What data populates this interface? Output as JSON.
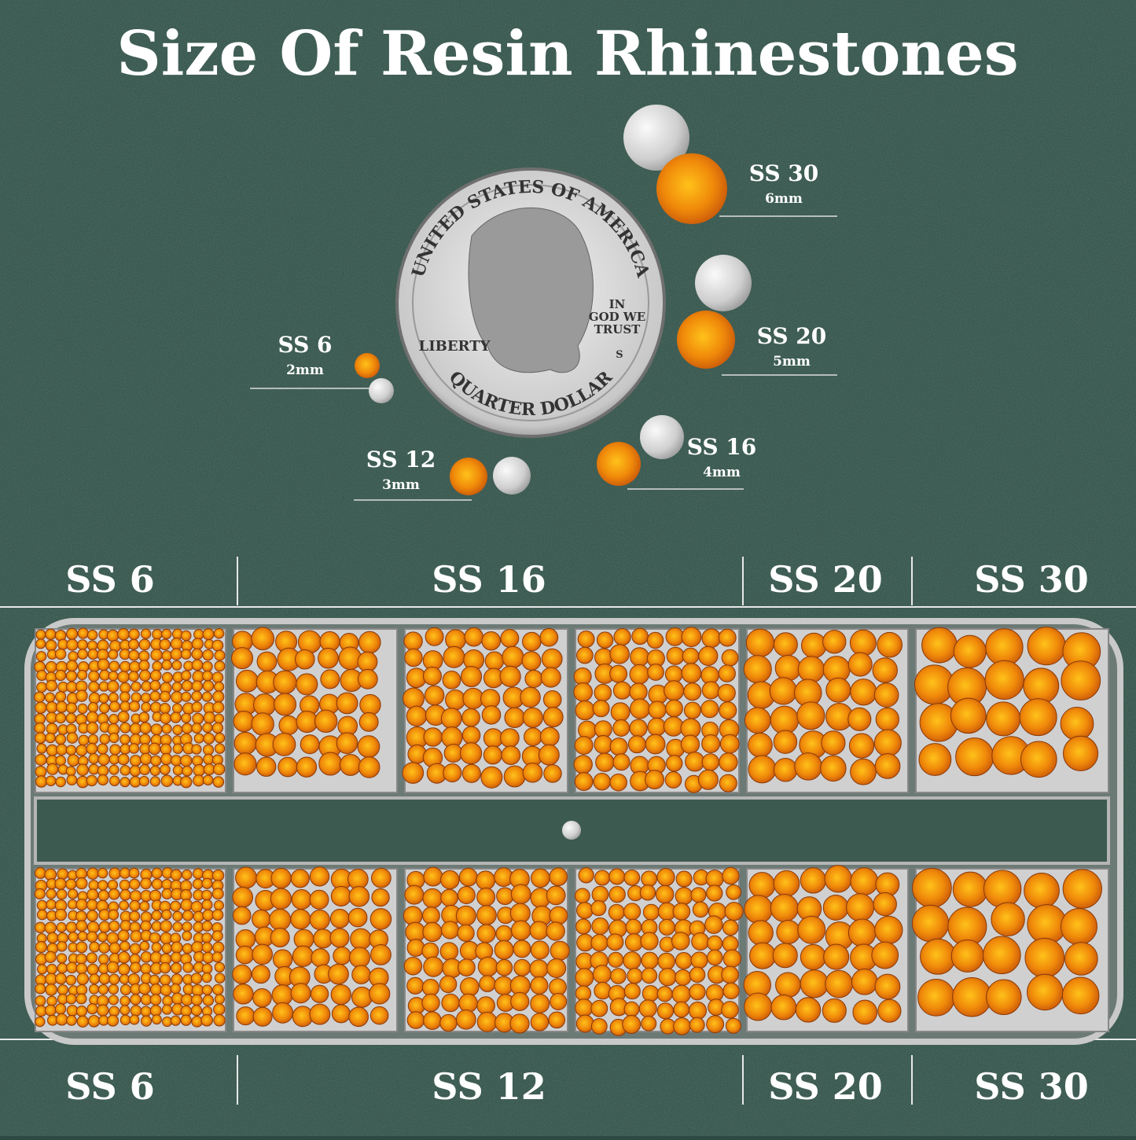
{
  "title": "Size Of Resin Rhinestones",
  "sizes": [
    {
      "label": "SS 30",
      "mm": "6mm"
    },
    {
      "label": "SS 20",
      "mm": "5mm"
    },
    {
      "label": "SS 6",
      "mm": "2mm"
    },
    {
      "label": "SS 16",
      "mm": "4mm"
    },
    {
      "label": "SS 12",
      "mm": "3mm"
    }
  ],
  "coin": {
    "top": "UNITED STATES OF AMERICA",
    "motto": [
      "IN",
      "GOD WE",
      "TRUST"
    ],
    "liberty": "LIBERTY",
    "mint": "S",
    "bottom": "QUARTER DOLLAR"
  },
  "top_row": [
    "SS 6",
    "SS 16",
    "SS 20",
    "SS 30"
  ],
  "bottom_row": [
    "SS 6",
    "SS 12",
    "SS 20",
    "SS 30"
  ]
}
